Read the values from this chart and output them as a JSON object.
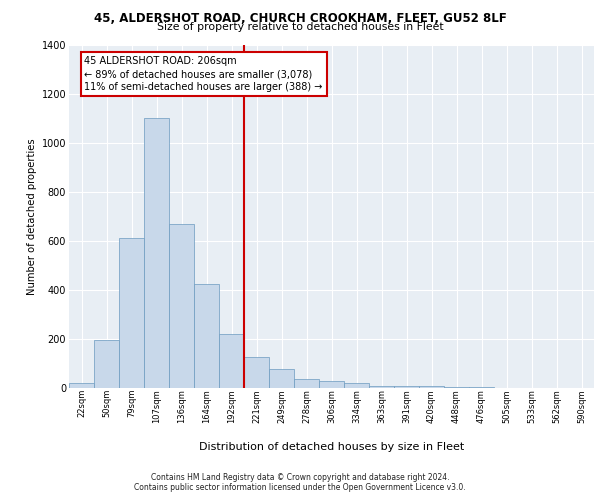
{
  "title_line1": "45, ALDERSHOT ROAD, CHURCH CROOKHAM, FLEET, GU52 8LF",
  "title_line2": "Size of property relative to detached houses in Fleet",
  "xlabel": "Distribution of detached houses by size in Fleet",
  "ylabel": "Number of detached properties",
  "bar_color": "#c8d8ea",
  "bar_edge_color": "#6a9abf",
  "categories": [
    "22sqm",
    "50sqm",
    "79sqm",
    "107sqm",
    "136sqm",
    "164sqm",
    "192sqm",
    "221sqm",
    "249sqm",
    "278sqm",
    "306sqm",
    "334sqm",
    "363sqm",
    "391sqm",
    "420sqm",
    "448sqm",
    "476sqm",
    "505sqm",
    "533sqm",
    "562sqm",
    "590sqm"
  ],
  "values": [
    18,
    193,
    610,
    1100,
    670,
    425,
    218,
    125,
    75,
    35,
    25,
    18,
    5,
    5,
    5,
    2,
    2,
    0,
    0,
    0,
    0
  ],
  "vline_position": 6.5,
  "vline_color": "#cc0000",
  "annotation_text": "45 ALDERSHOT ROAD: 206sqm\n← 89% of detached houses are smaller (3,078)\n11% of semi-detached houses are larger (388) →",
  "annotation_box_facecolor": "#ffffff",
  "annotation_box_edgecolor": "#cc0000",
  "ylim": [
    0,
    1400
  ],
  "yticks": [
    0,
    200,
    400,
    600,
    800,
    1000,
    1200,
    1400
  ],
  "background_color": "#e8eef4",
  "footer_line1": "Contains HM Land Registry data © Crown copyright and database right 2024.",
  "footer_line2": "Contains public sector information licensed under the Open Government Licence v3.0."
}
